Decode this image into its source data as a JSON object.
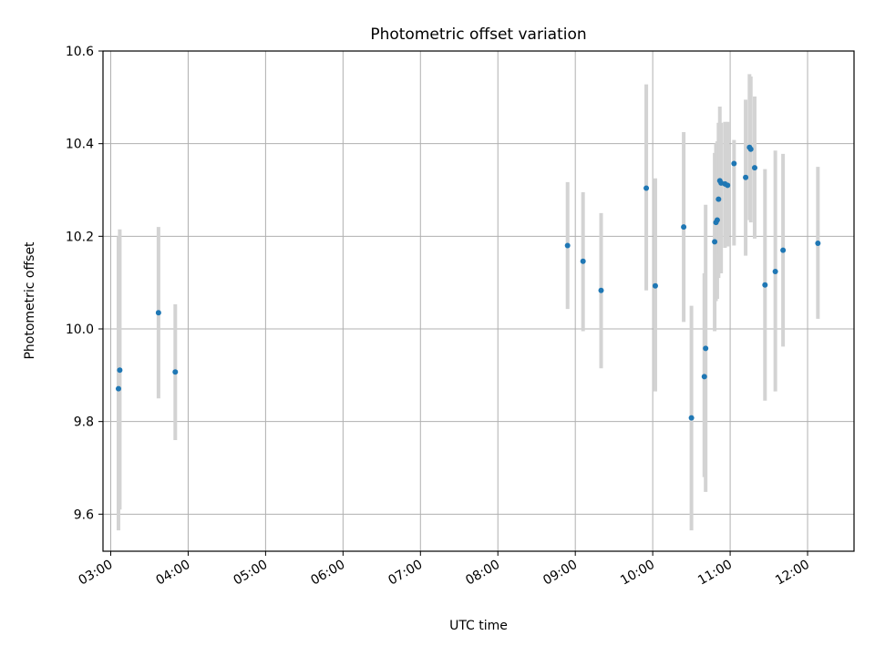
{
  "chart_data": {
    "type": "scatter",
    "title": "Photometric offset variation",
    "xlabel": "UTC time",
    "ylabel": "Photometric offset",
    "xlim": [
      "02:54",
      "12:36"
    ],
    "ylim": [
      9.52,
      10.6
    ],
    "grid": true,
    "x_ticks": [
      "03:00",
      "04:00",
      "05:00",
      "06:00",
      "07:00",
      "08:00",
      "09:00",
      "10:00",
      "11:00",
      "12:00"
    ],
    "y_ticks": [
      "9.6",
      "9.8",
      "10.0",
      "10.2",
      "10.4",
      "10.6"
    ],
    "marker_color": "#1f77b4",
    "errorbar_color": "#d3d3d3",
    "points": [
      {
        "x": "03:06",
        "y": 9.871,
        "err_low": 9.565,
        "err_high": 10.2
      },
      {
        "x": "03:07",
        "y": 9.911,
        "err_low": 9.61,
        "err_high": 10.215
      },
      {
        "x": "03:37",
        "y": 10.035,
        "err_low": 9.85,
        "err_high": 10.22
      },
      {
        "x": "03:50",
        "y": 9.907,
        "err_low": 9.76,
        "err_high": 10.053
      },
      {
        "x": "08:54",
        "y": 10.18,
        "err_low": 10.043,
        "err_high": 10.317
      },
      {
        "x": "09:06",
        "y": 10.146,
        "err_low": 9.995,
        "err_high": 10.295
      },
      {
        "x": "09:20",
        "y": 10.083,
        "err_low": 9.915,
        "err_high": 10.25
      },
      {
        "x": "09:55",
        "y": 10.304,
        "err_low": 10.083,
        "err_high": 10.528
      },
      {
        "x": "10:02",
        "y": 10.093,
        "err_low": 9.865,
        "err_high": 10.325
      },
      {
        "x": "10:24",
        "y": 10.22,
        "err_low": 10.015,
        "err_high": 10.425
      },
      {
        "x": "10:30",
        "y": 9.808,
        "err_low": 9.565,
        "err_high": 10.05
      },
      {
        "x": "10:40",
        "y": 9.897,
        "err_low": 9.68,
        "err_high": 10.12
      },
      {
        "x": "10:41",
        "y": 9.958,
        "err_low": 9.648,
        "err_high": 10.268
      },
      {
        "x": "10:48",
        "y": 10.188,
        "err_low": 9.995,
        "err_high": 10.38
      },
      {
        "x": "10:49",
        "y": 10.23,
        "err_low": 10.06,
        "err_high": 10.4
      },
      {
        "x": "10:50",
        "y": 10.235,
        "err_low": 10.065,
        "err_high": 10.405
      },
      {
        "x": "10:51",
        "y": 10.28,
        "err_low": 10.11,
        "err_high": 10.445
      },
      {
        "x": "10:52",
        "y": 10.32,
        "err_low": 10.16,
        "err_high": 10.48
      },
      {
        "x": "10:53",
        "y": 10.315,
        "err_low": 10.12,
        "err_high": 10.445
      },
      {
        "x": "10:56",
        "y": 10.313,
        "err_low": 10.175,
        "err_high": 10.447
      },
      {
        "x": "10:58",
        "y": 10.31,
        "err_low": 10.178,
        "err_high": 10.447
      },
      {
        "x": "11:03",
        "y": 10.357,
        "err_low": 10.18,
        "err_high": 10.408
      },
      {
        "x": "11:12",
        "y": 10.327,
        "err_low": 10.158,
        "err_high": 10.495
      },
      {
        "x": "11:15",
        "y": 10.392,
        "err_low": 10.235,
        "err_high": 10.55
      },
      {
        "x": "11:16",
        "y": 10.388,
        "err_low": 10.23,
        "err_high": 10.545
      },
      {
        "x": "11:19",
        "y": 10.348,
        "err_low": 10.195,
        "err_high": 10.502
      },
      {
        "x": "11:27",
        "y": 10.095,
        "err_low": 9.845,
        "err_high": 10.345
      },
      {
        "x": "11:35",
        "y": 10.124,
        "err_low": 9.865,
        "err_high": 10.385
      },
      {
        "x": "11:41",
        "y": 10.17,
        "err_low": 9.962,
        "err_high": 10.378
      },
      {
        "x": "12:08",
        "y": 10.185,
        "err_low": 10.022,
        "err_high": 10.35
      }
    ]
  }
}
